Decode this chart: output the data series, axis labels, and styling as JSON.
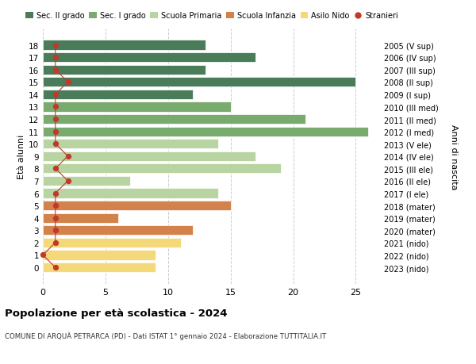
{
  "ages": [
    18,
    17,
    16,
    15,
    14,
    13,
    12,
    11,
    10,
    9,
    8,
    7,
    6,
    5,
    4,
    3,
    2,
    1,
    0
  ],
  "right_labels": [
    "2005 (V sup)",
    "2006 (IV sup)",
    "2007 (III sup)",
    "2008 (II sup)",
    "2009 (I sup)",
    "2010 (III med)",
    "2011 (II med)",
    "2012 (I med)",
    "2013 (V ele)",
    "2014 (IV ele)",
    "2015 (III ele)",
    "2016 (II ele)",
    "2017 (I ele)",
    "2018 (mater)",
    "2019 (mater)",
    "2020 (mater)",
    "2021 (nido)",
    "2022 (nido)",
    "2023 (nido)"
  ],
  "bar_values": [
    13,
    17,
    13,
    25,
    12,
    15,
    21,
    26,
    14,
    17,
    19,
    7,
    14,
    15,
    6,
    12,
    11,
    9,
    9
  ],
  "bar_colors": [
    "#4a7c59",
    "#4a7c59",
    "#4a7c59",
    "#4a7c59",
    "#4a7c59",
    "#7aab6e",
    "#7aab6e",
    "#7aab6e",
    "#b8d4a0",
    "#b8d4a0",
    "#b8d4a0",
    "#b8d4a0",
    "#b8d4a0",
    "#d2824a",
    "#d2824a",
    "#d2824a",
    "#f5d87a",
    "#f5d87a",
    "#f5d87a"
  ],
  "stranieri_x": [
    1,
    1,
    1,
    2,
    1,
    1,
    1,
    1,
    1,
    2,
    1,
    2,
    1,
    1,
    1,
    1,
    1,
    0,
    1
  ],
  "legend_labels": [
    "Sec. II grado",
    "Sec. I grado",
    "Scuola Primaria",
    "Scuola Infanzia",
    "Asilo Nido",
    "Stranieri"
  ],
  "legend_colors": [
    "#4a7c59",
    "#7aab6e",
    "#b8d4a0",
    "#d2824a",
    "#f5d87a",
    "#c0392b"
  ],
  "title": "Popolazione per età scolastica - 2024",
  "subtitle": "COMUNE DI ARQUÀ PETRARCA (PD) - Dati ISTAT 1° gennaio 2024 - Elaborazione TUTTITALIA.IT",
  "ylabel_left": "Età alunni",
  "ylabel_right": "Anni di nascita",
  "xlim": [
    0,
    27
  ],
  "xticks": [
    0,
    5,
    10,
    15,
    20,
    25
  ],
  "bar_height": 0.78,
  "bg_color": "#ffffff",
  "plot_bg": "#ffffff",
  "grid_color": "#cccccc"
}
